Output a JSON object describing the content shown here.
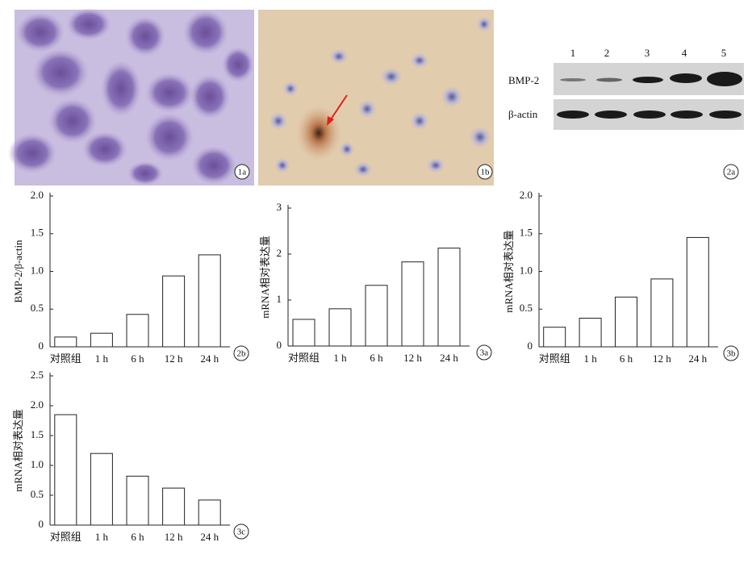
{
  "images": {
    "panel_1a": "1a",
    "panel_1b": "1b",
    "panel_2a": "2a",
    "lanes": [
      "1",
      "2",
      "3",
      "4",
      "5"
    ],
    "row_labels": [
      "BMP-2",
      "β-actin"
    ]
  },
  "chart_data": [
    {
      "type": "bar",
      "panel_label": "2b",
      "y_label": "BMP-2/β-actin",
      "categories": [
        "对照组",
        "1 h",
        "6 h",
        "12 h",
        "24 h"
      ],
      "values": [
        0.13,
        0.18,
        0.43,
        0.94,
        1.22
      ],
      "color": "#ffffff",
      "ylim": [
        0,
        2.0
      ],
      "yticks": [
        0,
        0.5,
        {
          "value": 1.0,
          "label": "1.0"
        },
        1.5,
        {
          "value": 2.0,
          "label": "2.0"
        }
      ]
    },
    {
      "type": "bar",
      "panel_label": "3a",
      "y_label": "mRNA相对表达量",
      "categories": [
        "对照组",
        "1 h",
        "6 h",
        "12 h",
        "24 h"
      ],
      "values": [
        0.58,
        0.81,
        1.32,
        1.83,
        2.13
      ],
      "color": "#ffffff",
      "ylim": [
        0,
        3
      ],
      "yticks": [
        0,
        1,
        2,
        3
      ]
    },
    {
      "type": "bar",
      "panel_label": "3b",
      "y_label": "mRNA相对表达量",
      "categories": [
        "对照组",
        "1 h",
        "6 h",
        "12 h",
        "24 h"
      ],
      "values": [
        0.26,
        0.38,
        0.66,
        0.9,
        1.45
      ],
      "color": "#ffffff",
      "ylim": [
        0,
        2.0
      ],
      "yticks": [
        0,
        0.5,
        {
          "value": 1.0,
          "label": "1.0"
        },
        1.5,
        {
          "value": 2.0,
          "label": "2.0"
        }
      ]
    },
    {
      "type": "bar",
      "panel_label": "3c",
      "y_label": "mRNA相对表达量",
      "categories": [
        "对照组",
        "1 h",
        "6 h",
        "12 h",
        "24 h"
      ],
      "values": [
        1.85,
        1.2,
        0.82,
        0.62,
        0.42
      ],
      "color": "#ffffff",
      "ylim": [
        0,
        2.5
      ],
      "yticks": [
        0,
        0.5,
        {
          "value": 1.0,
          "label": "1.0"
        },
        1.5,
        {
          "value": 2.0,
          "label": "2.0"
        },
        2.5
      ]
    }
  ]
}
